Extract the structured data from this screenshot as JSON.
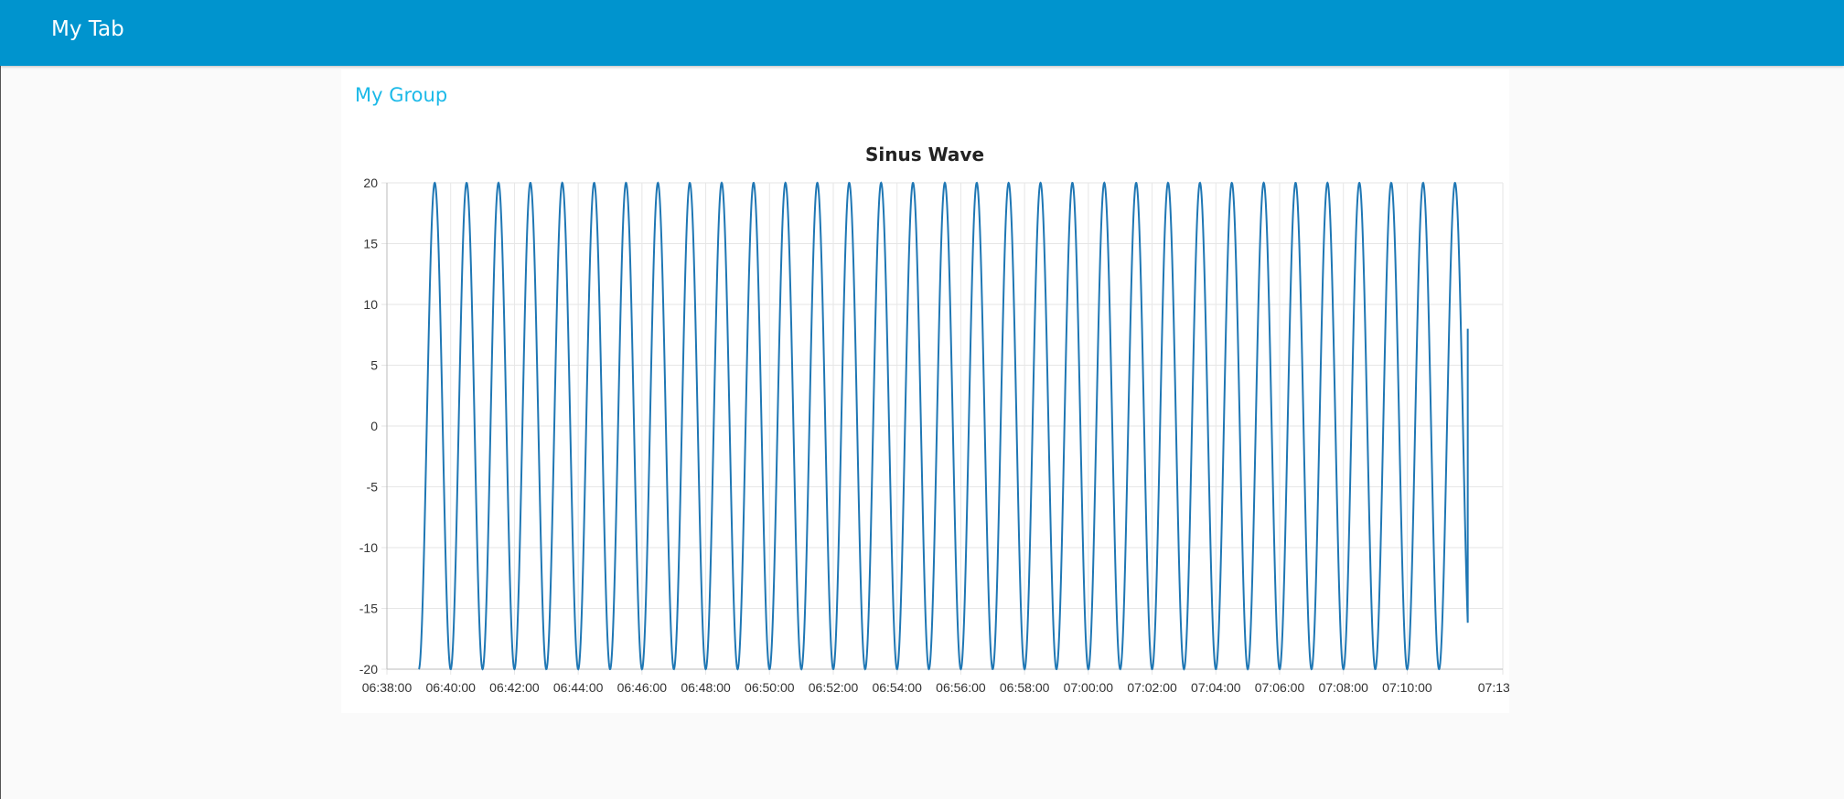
{
  "toolbar": {
    "title": "My Tab",
    "background": "#0094ce"
  },
  "group": {
    "title": "My Group",
    "title_color": "#1bb9e8"
  },
  "chart_data": {
    "type": "line",
    "title": "Sinus Wave",
    "xlabel": "",
    "ylabel": "",
    "ylim": [
      -20,
      20
    ],
    "xlim": [
      "06:38:00",
      "07:13:00"
    ],
    "yticks": [
      "20",
      "15",
      "10",
      "5",
      "0",
      "-5",
      "-10",
      "-15",
      "-20"
    ],
    "xticks": [
      "06:38:00",
      "06:40:00",
      "06:42:00",
      "06:44:00",
      "06:46:00",
      "06:48:00",
      "06:50:00",
      "06:52:00",
      "06:54:00",
      "06:56:00",
      "06:58:00",
      "07:00:00",
      "07:02:00",
      "07:04:00",
      "07:06:00",
      "07:08:00",
      "07:10:00",
      "07:13:00"
    ],
    "grid": true,
    "series": [
      {
        "color": "#1f77b4",
        "function": "20*sin",
        "amplitude": 20,
        "period_seconds": 60,
        "x_start": "06:39:00",
        "x_end": "07:11:54",
        "end_value": 8
      }
    ]
  }
}
